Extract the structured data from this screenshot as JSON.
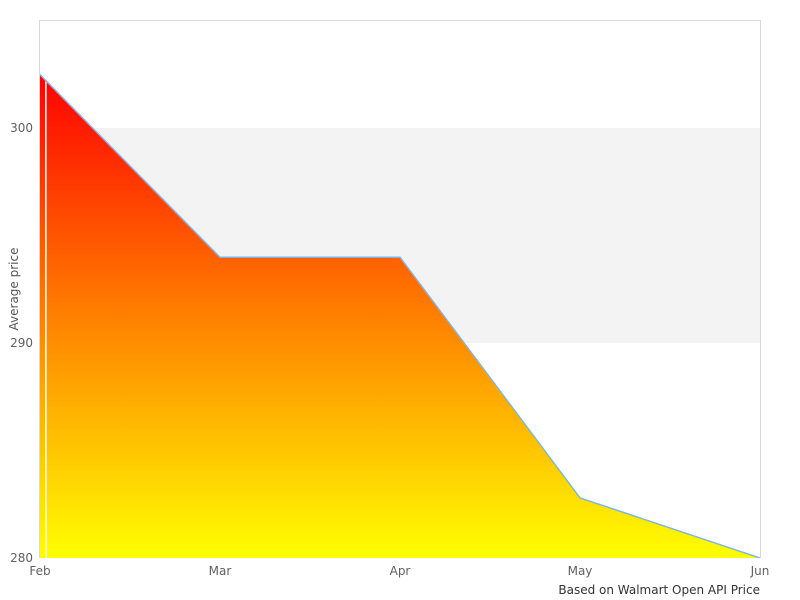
{
  "chart_data": {
    "type": "area",
    "categories": [
      "Feb",
      "Mar",
      "Apr",
      "May",
      "Jun"
    ],
    "values": [
      302.5,
      294,
      294,
      282.8,
      280
    ],
    "title": "",
    "xlabel": "",
    "ylabel": "Average price",
    "ylim": [
      280,
      305
    ],
    "yticks": [
      280,
      290,
      300
    ],
    "alternate_band": [
      290,
      300
    ],
    "caption": "Based on Walmart Open API Price",
    "grid": false,
    "legend_position": "none",
    "colors": {
      "area_gradient_top": "#ff0000",
      "area_gradient_bottom": "#ffff00",
      "series_line": "#7cb5ec",
      "band_fill": "#f3f3f3",
      "plot_border": "#d9d9d9",
      "tick_label": "#606060",
      "axis_title": "#555555",
      "caption_text": "#333333",
      "background": "#ffffff"
    }
  }
}
